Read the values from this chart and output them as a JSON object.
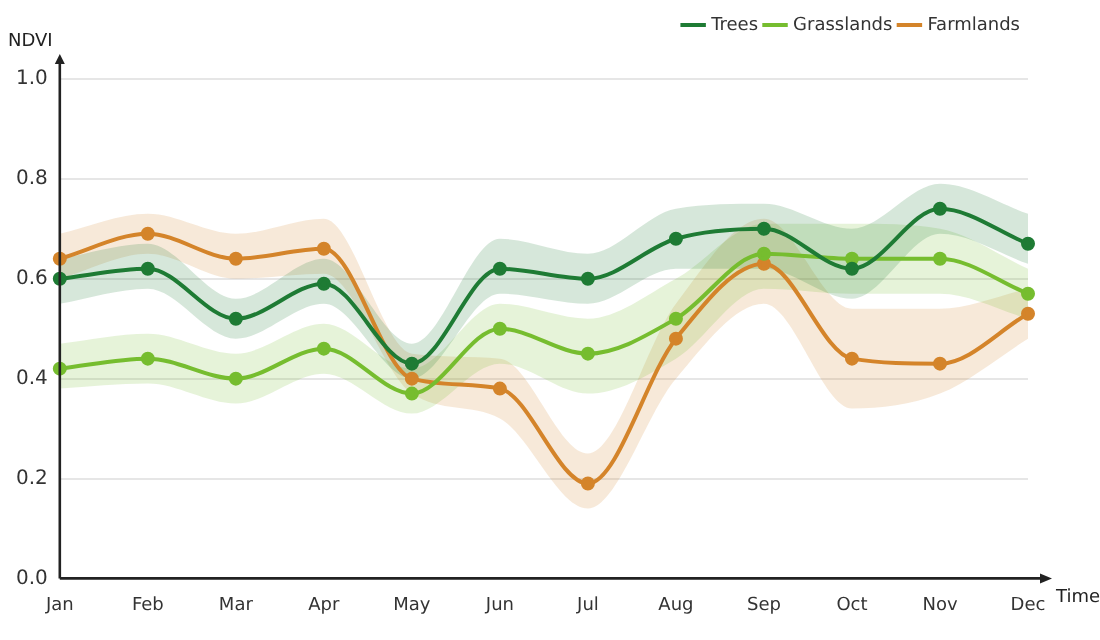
{
  "chart_data": {
    "type": "line",
    "xlabel": "Time",
    "ylabel": "NDVI",
    "categories": [
      "Jan",
      "Feb",
      "Mar",
      "Apr",
      "May",
      "Jun",
      "Jul",
      "Aug",
      "Sep",
      "Oct",
      "Nov",
      "Dec"
    ],
    "ylim": [
      0,
      1.05
    ],
    "yticks": [
      {
        "value": 0,
        "label": "0.0"
      },
      0.2,
      0.4,
      0.6,
      0.8,
      {
        "value": 1,
        "label": "1.0"
      }
    ],
    "grid": "y",
    "legend": "top right",
    "marker": "circle",
    "line_style": "solid",
    "series": [
      {
        "name": "Trees",
        "color": "#1e7b34",
        "values": [
          0.6,
          0.62,
          0.52,
          0.59,
          0.43,
          0.62,
          0.6,
          0.68,
          0.7,
          0.62,
          0.74,
          0.67
        ],
        "upper": [
          0.64,
          0.67,
          0.56,
          0.64,
          0.47,
          0.68,
          0.65,
          0.74,
          0.75,
          0.7,
          0.79,
          0.73
        ],
        "lower": [
          0.55,
          0.58,
          0.48,
          0.55,
          0.4,
          0.57,
          0.55,
          0.62,
          0.62,
          0.56,
          0.69,
          0.63
        ]
      },
      {
        "name": "Grasslands",
        "color": "#76bd2f",
        "values": [
          0.42,
          0.44,
          0.4,
          0.46,
          0.37,
          0.5,
          0.45,
          0.52,
          0.65,
          0.64,
          0.64,
          0.57
        ],
        "upper": [
          0.47,
          0.49,
          0.45,
          0.51,
          0.42,
          0.55,
          0.52,
          0.6,
          0.71,
          0.71,
          0.7,
          0.62
        ],
        "lower": [
          0.38,
          0.39,
          0.35,
          0.41,
          0.33,
          0.43,
          0.37,
          0.44,
          0.58,
          0.57,
          0.57,
          0.52
        ]
      },
      {
        "name": "Farmlands",
        "color": "#d4842a",
        "values": [
          0.64,
          0.69,
          0.64,
          0.66,
          0.4,
          0.38,
          0.19,
          0.48,
          0.63,
          0.44,
          0.43,
          0.53
        ],
        "upper": [
          0.69,
          0.73,
          0.69,
          0.72,
          0.45,
          0.44,
          0.25,
          0.55,
          0.72,
          0.54,
          0.54,
          0.58
        ],
        "lower": [
          0.6,
          0.65,
          0.6,
          0.61,
          0.37,
          0.32,
          0.14,
          0.4,
          0.55,
          0.34,
          0.37,
          0.48
        ]
      }
    ]
  }
}
